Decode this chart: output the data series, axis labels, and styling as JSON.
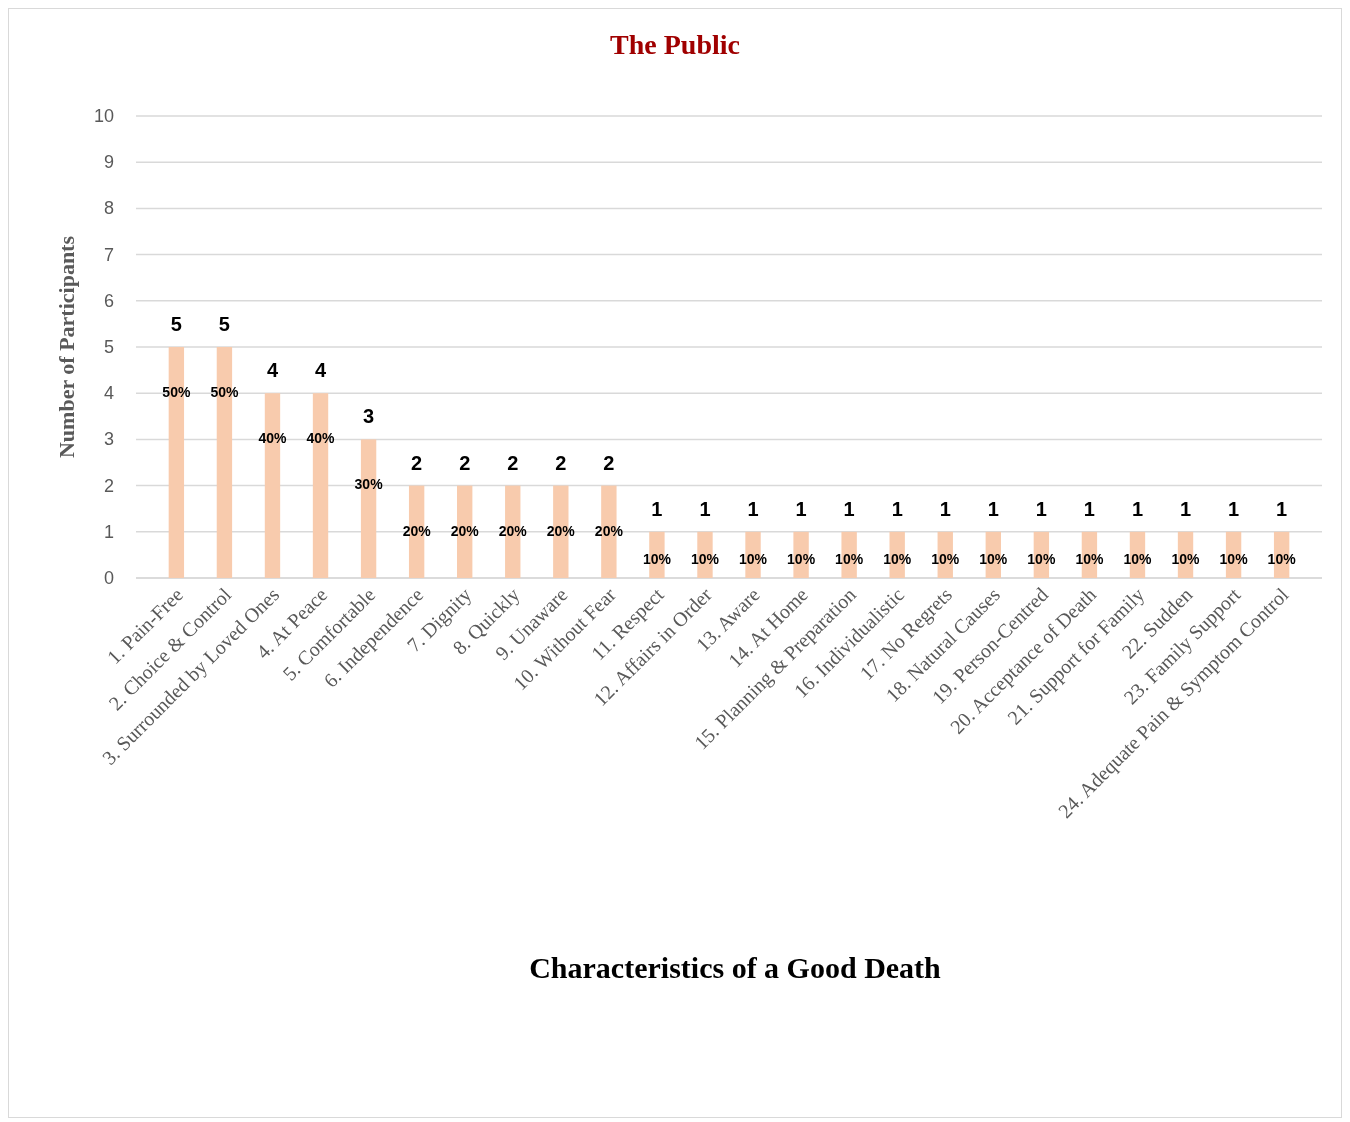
{
  "chart_data": {
    "type": "bar",
    "title": "The Public",
    "xlabel": "Characteristics of a Good Death",
    "ylabel": "Number of Participants",
    "categories": [
      "1. Pain-Free",
      "2. Choice & Control",
      "3. Surrounded by Loved Ones",
      "4. At Peace",
      "5. Comfortable",
      "6. Independence",
      "7. Dignity",
      "8. Quickly",
      "9. Unaware",
      "10. Without Fear",
      "11. Respect",
      "12. Affairs in Order",
      "13. Aware",
      "14. At Home",
      "15. Planning & Preparation",
      "16. Individualistic",
      "17. No Regrets",
      "18. Natural Causes",
      "19. Person-Centred",
      "20. Acceptance of Death",
      "21. Support for Family",
      "22. Sudden",
      "23. Family Support",
      "24. Adequate Pain & Symptom Control"
    ],
    "values": [
      5,
      5,
      4,
      4,
      3,
      2,
      2,
      2,
      2,
      2,
      1,
      1,
      1,
      1,
      1,
      1,
      1,
      1,
      1,
      1,
      1,
      1,
      1,
      1
    ],
    "color": "#f8cbad",
    "ylim": [
      0,
      10
    ],
    "yticks": [
      0,
      1,
      2,
      3,
      4,
      5,
      6,
      7,
      8,
      9,
      10
    ],
    "grid": "y",
    "data_labels": true,
    "annotations": [
      {
        "text": "50%",
        "x": "1. Pain-Free",
        "y": 5
      },
      {
        "text": "50%",
        "x": "2. Choice & Control",
        "y": 5
      },
      {
        "text": "40%",
        "x": "3. Surrounded by Loved Ones",
        "y": 4
      },
      {
        "text": "40%",
        "x": "4. At Peace",
        "y": 4
      },
      {
        "text": "30%",
        "x": "5. Comfortable",
        "y": 3
      },
      {
        "text": "20%",
        "x": "6. Independence",
        "y": 2
      },
      {
        "text": "20%",
        "x": "7. Dignity",
        "y": 2
      },
      {
        "text": "20%",
        "x": "8. Quickly",
        "y": 2
      },
      {
        "text": "20%",
        "x": "9. Unaware",
        "y": 2
      },
      {
        "text": "20%",
        "x": "10. Without Fear",
        "y": 2
      },
      {
        "text": "10%",
        "x": "11. Respect",
        "y": 1
      },
      {
        "text": "10%",
        "x": "12. Affairs in Order",
        "y": 1
      },
      {
        "text": "10%",
        "x": "13. Aware",
        "y": 1
      },
      {
        "text": "10%",
        "x": "14. At Home",
        "y": 1
      },
      {
        "text": "10%",
        "x": "15. Planning & Preparation",
        "y": 1
      },
      {
        "text": "10%",
        "x": "16. Individualistic",
        "y": 1
      },
      {
        "text": "10%",
        "x": "17. No Regrets",
        "y": 1
      },
      {
        "text": "10%",
        "x": "18. Natural Causes",
        "y": 1
      },
      {
        "text": "10%",
        "x": "19. Person-Centred",
        "y": 1
      },
      {
        "text": "10%",
        "x": "20. Acceptance of Death",
        "y": 1
      },
      {
        "text": "10%",
        "x": "21. Support for Family",
        "y": 1
      },
      {
        "text": "10%",
        "x": "22. Sudden",
        "y": 1
      },
      {
        "text": "10%",
        "x": "23. Family Support",
        "y": 1
      },
      {
        "text": "10%",
        "x": "24. Adequate Pain & Symptom Control",
        "y": 1
      }
    ]
  }
}
